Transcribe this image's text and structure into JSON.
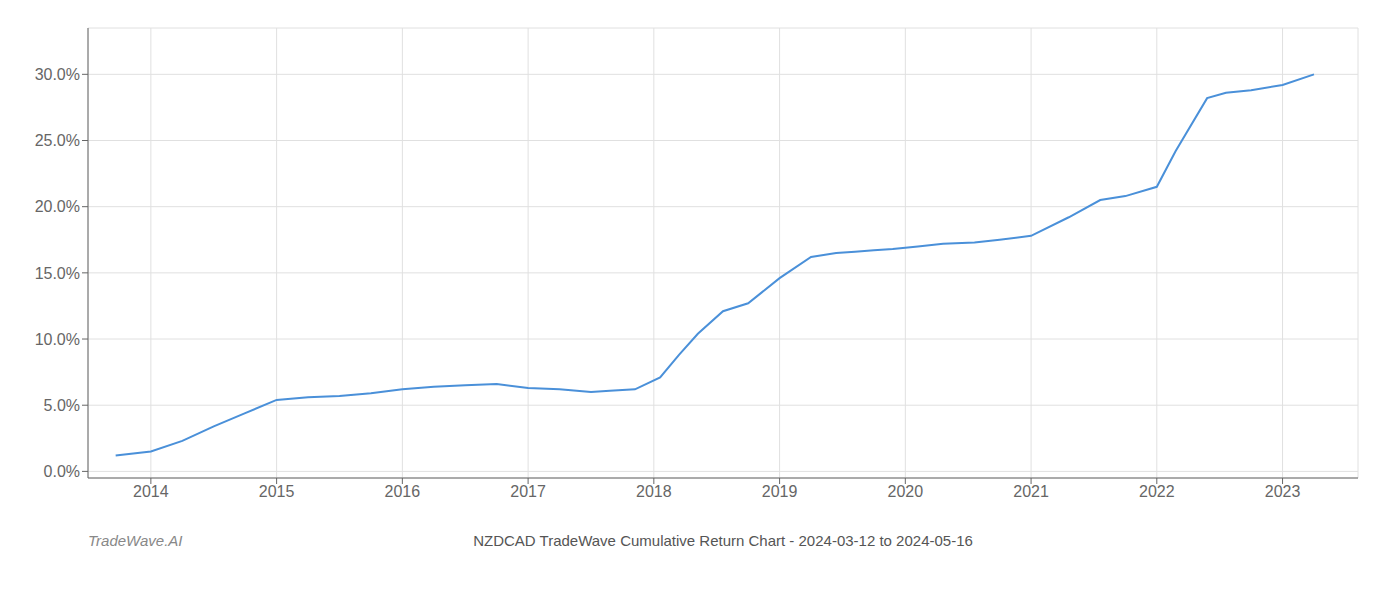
{
  "chart_data": {
    "type": "line",
    "title": "NZDCAD TradeWave Cumulative Return Chart - 2024-03-12 to 2024-05-16",
    "annotations": [
      "TradeWave.AI"
    ],
    "color": "#4a90d9",
    "grid": true,
    "x": [
      2013.72,
      2014.0,
      2014.25,
      2014.5,
      2014.75,
      2015.0,
      2015.25,
      2015.5,
      2015.75,
      2016.0,
      2016.25,
      2016.5,
      2016.75,
      2017.0,
      2017.25,
      2017.5,
      2017.65,
      2017.85,
      2018.05,
      2018.2,
      2018.35,
      2018.55,
      2018.75,
      2019.0,
      2019.25,
      2019.45,
      2019.6,
      2019.75,
      2019.9,
      2020.1,
      2020.3,
      2020.55,
      2020.75,
      2021.0,
      2021.3,
      2021.55,
      2021.75,
      2022.0,
      2022.15,
      2022.4,
      2022.55,
      2022.75,
      2023.0,
      2023.25
    ],
    "values": [
      0.012,
      0.015,
      0.023,
      0.034,
      0.044,
      0.054,
      0.056,
      0.057,
      0.059,
      0.062,
      0.064,
      0.065,
      0.066,
      0.063,
      0.062,
      0.06,
      0.061,
      0.062,
      0.071,
      0.088,
      0.104,
      0.121,
      0.127,
      0.146,
      0.162,
      0.165,
      0.166,
      0.167,
      0.168,
      0.17,
      0.172,
      0.173,
      0.175,
      0.178,
      0.192,
      0.205,
      0.208,
      0.215,
      0.242,
      0.282,
      0.286,
      0.288,
      0.292,
      0.3
    ],
    "xlim": [
      2013.5,
      2023.6
    ],
    "xticks": [
      2014,
      2015,
      2016,
      2017,
      2018,
      2019,
      2020,
      2021,
      2022,
      2023
    ],
    "ylim": [
      -0.005,
      0.335
    ],
    "yticks": [
      {
        "value": 0.0,
        "label": "0.0%"
      },
      {
        "value": 0.05,
        "label": "5.0%"
      },
      {
        "value": 0.1,
        "label": "10.0%"
      },
      {
        "value": 0.15,
        "label": "15.0%"
      },
      {
        "value": 0.2,
        "label": "20.0%"
      },
      {
        "value": 0.25,
        "label": "25.0%"
      },
      {
        "value": 0.3,
        "label": "30.0%"
      }
    ]
  }
}
